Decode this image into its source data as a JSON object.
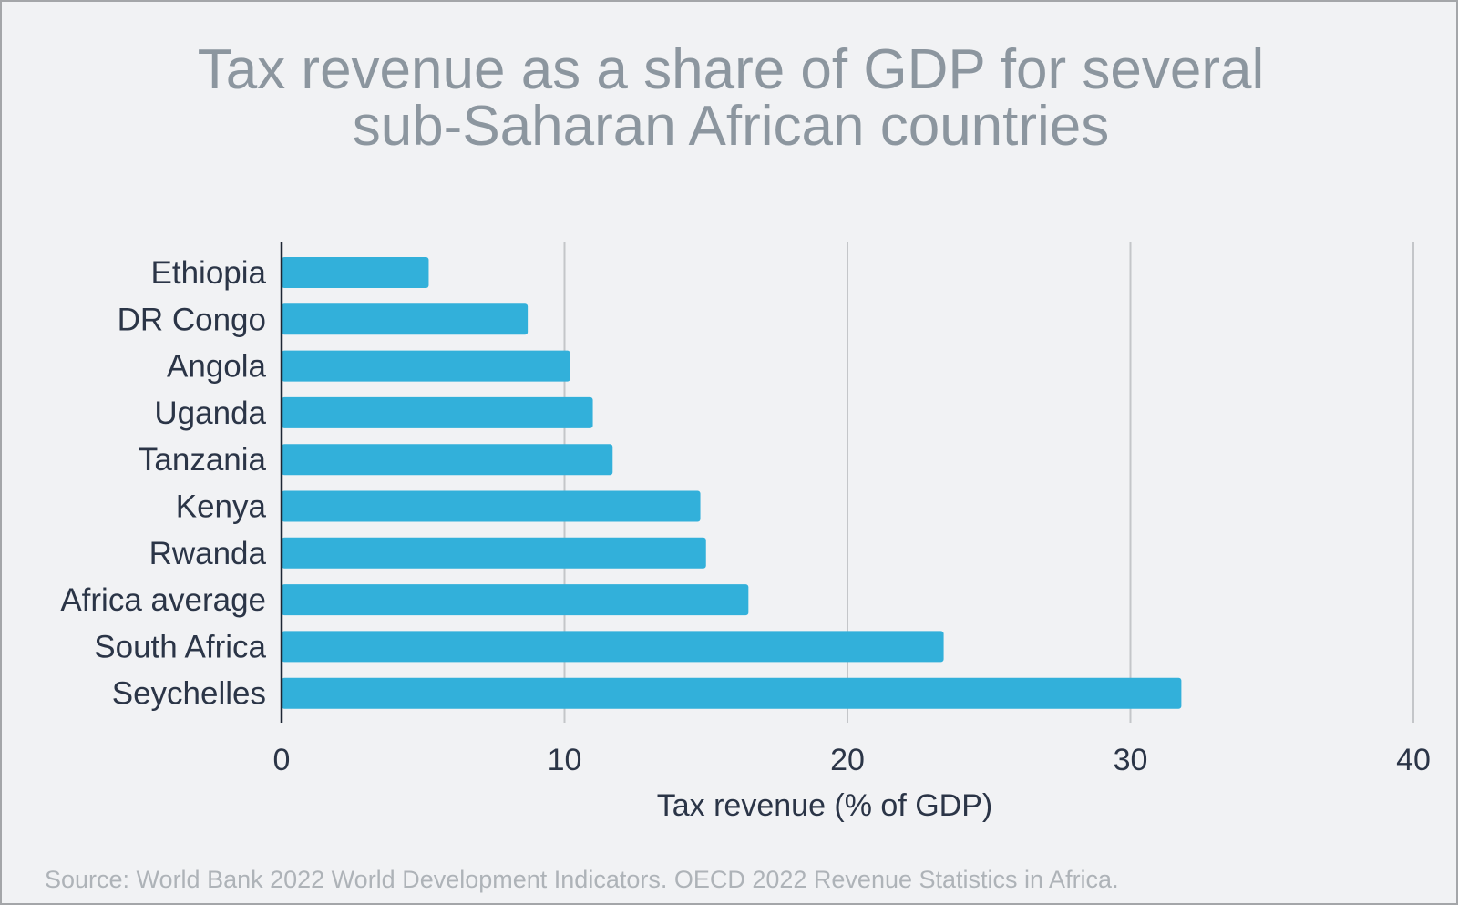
{
  "chart_data": {
    "type": "bar",
    "orientation": "horizontal",
    "title_lines": [
      "Tax revenue as a share of GDP for several",
      "sub-Saharan African countries"
    ],
    "categories": [
      "Ethiopia",
      "DR Congo",
      "Angola",
      "Uganda",
      "Tanzania",
      "Kenya",
      "Rwanda",
      "Africa average",
      "South Africa",
      "Seychelles"
    ],
    "values": [
      5.2,
      8.7,
      10.2,
      11.0,
      11.7,
      14.8,
      15.0,
      16.5,
      23.4,
      31.8
    ],
    "xlabel": "Tax revenue (% of GDP)",
    "xlim": [
      0,
      40
    ],
    "xticks": [
      "0",
      "10",
      "20",
      "30",
      "40"
    ],
    "grid": "vertical",
    "bar_color": "#32b0da",
    "source": "Source: World Bank 2022 World Development Indicators. OECD 2022 Revenue Statistics in Africa."
  }
}
